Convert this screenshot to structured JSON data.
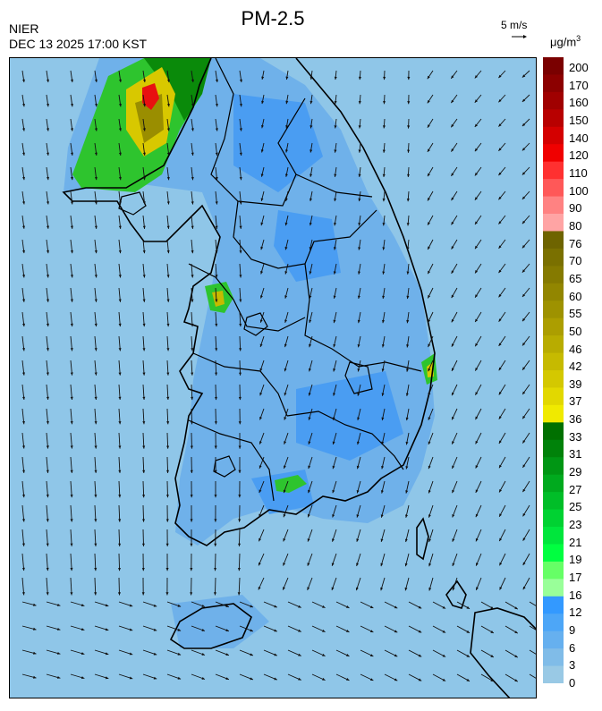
{
  "header": {
    "agency": "NIER",
    "datetime": "DEC 13 2025 17:00 KST",
    "title": "PM-2.5",
    "wind_reference": "5 m/s",
    "unit": "μg/m",
    "unit_superscript": "3"
  },
  "legend": {
    "labels": [
      "200",
      "170",
      "160",
      "150",
      "140",
      "120",
      "110",
      "100",
      "90",
      "80",
      "76",
      "70",
      "65",
      "60",
      "55",
      "50",
      "46",
      "42",
      "39",
      "37",
      "36",
      "33",
      "31",
      "29",
      "27",
      "25",
      "23",
      "21",
      "19",
      "17",
      "16",
      "12",
      "9",
      "6",
      "3",
      "0"
    ],
    "colors": [
      "#7a0000",
      "#8c0000",
      "#a00000",
      "#b80000",
      "#d40000",
      "#f00000",
      "#ff3030",
      "#ff5858",
      "#ff8282",
      "#ffa4a4",
      "#6e6400",
      "#7a7000",
      "#857a00",
      "#928600",
      "#9e9200",
      "#ac9e00",
      "#b8ac00",
      "#c6ba00",
      "#d4c800",
      "#e2d800",
      "#f0ea00",
      "#007000",
      "#00820a",
      "#009614",
      "#00aa1e",
      "#00be28",
      "#00d232",
      "#00e63c",
      "#00ff40",
      "#66ff66",
      "#99ff99",
      "#3399ff",
      "#4da6f7",
      "#66b0ef",
      "#80bce8",
      "#99c9e5"
    ]
  },
  "map": {
    "background_color": "#8fc6e8",
    "hotspots": [
      "northwest",
      "central-west",
      "east-coast",
      "south-coast"
    ]
  }
}
